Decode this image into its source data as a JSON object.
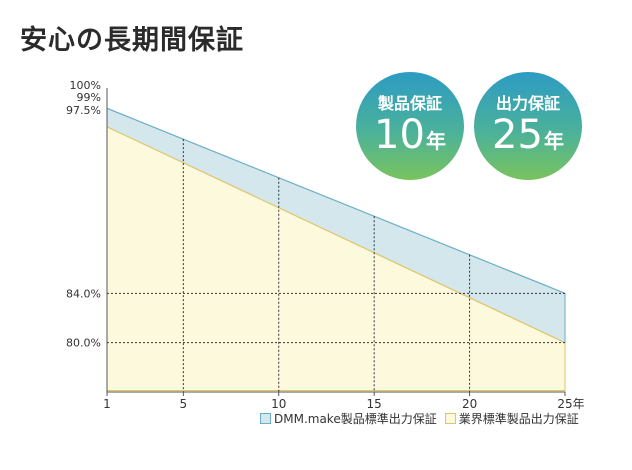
{
  "page": {
    "title": "安心の長期間保証"
  },
  "badges": [
    {
      "label": "製品保証",
      "value": "10",
      "unit": "年"
    },
    {
      "label": "出力保証",
      "value": "25",
      "unit": "年"
    }
  ],
  "colors": {
    "dmm_fill": "#d3e7ec",
    "dmm_line": "#6aaec7",
    "industry_fill": "#fdf9dc",
    "industry_line": "#e0c46a",
    "axis": "#555555",
    "grid": "#333333"
  },
  "chart_data": {
    "type": "area",
    "x": [
      1,
      5,
      10,
      15,
      20,
      25
    ],
    "x_tick_labels": [
      "1",
      "5",
      "10",
      "15",
      "20",
      "25年"
    ],
    "y_tick_labels": [
      {
        "value": 100,
        "label": "100%"
      },
      {
        "value": 99,
        "label": "99%"
      },
      {
        "value": 97.5,
        "label": "97.5%"
      },
      {
        "value": 84.0,
        "label": "84.0%"
      },
      {
        "value": 80.0,
        "label": "80.0%"
      }
    ],
    "xlim": [
      1,
      25
    ],
    "ylim": [
      76,
      100
    ],
    "series": [
      {
        "name": "DMM.make製品標準出力保証",
        "x": [
          1,
          25
        ],
        "values": [
          99,
          84.0
        ]
      },
      {
        "name": "業界標準製品出力保証",
        "x": [
          1,
          25
        ],
        "values": [
          97.5,
          80.0
        ]
      }
    ],
    "vertical_guides": [
      5,
      10,
      15,
      20
    ],
    "horizontal_guides": [
      84.0,
      80.0
    ],
    "legend_position": "bottom-right"
  }
}
